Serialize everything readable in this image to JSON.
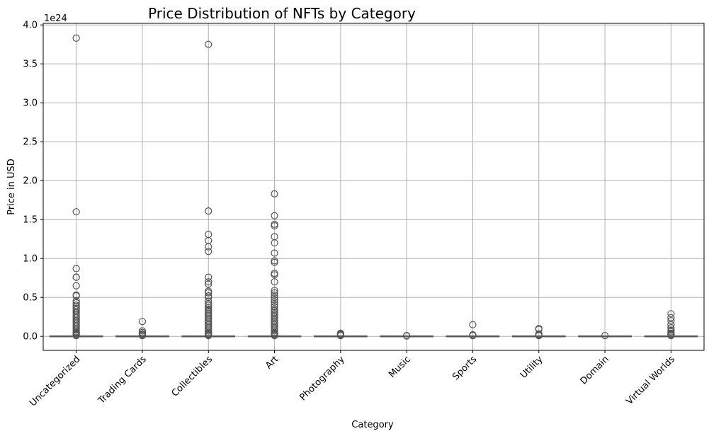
{
  "chart_data": {
    "type": "box",
    "title": "Price Distribution of NFTs by Category",
    "xlabel": "Category",
    "ylabel": "Price in USD",
    "y_offset_label": "1e24",
    "y_scale": 1e+24,
    "ylim": [
      -0.18,
      4.02
    ],
    "yticks": [
      0.0,
      0.5,
      1.0,
      1.5,
      2.0,
      2.5,
      3.0,
      3.5,
      4.0
    ],
    "ytick_labels": [
      "0.0",
      "0.5",
      "1.0",
      "1.5",
      "2.0",
      "2.5",
      "3.0",
      "3.5",
      "4.0"
    ],
    "grid": true,
    "colors": {
      "box": "#d9d9d9",
      "median": "#555555",
      "outlier_edge": "#555555",
      "grid": "#b0b0b0"
    },
    "categories": [
      "Uncategorized",
      "Trading Cards",
      "Collectibles",
      "Art",
      "Photography",
      "Music",
      "Sports",
      "Utility",
      "Domain",
      "Virtual Worlds"
    ],
    "boxes": [
      {
        "category": "Uncategorized",
        "q1": 0.0,
        "median": 0.0,
        "q3": 0.0,
        "whisker_low": 0.0,
        "whisker_high": 0.0,
        "outliers": [
          3.83,
          1.6,
          0.87,
          0.76,
          0.76,
          0.65,
          0.53,
          0.52,
          0.46,
          0.43,
          0.4,
          0.38,
          0.36,
          0.34,
          0.32,
          0.3,
          0.28,
          0.26,
          0.24,
          0.22,
          0.2,
          0.18,
          0.16,
          0.14,
          0.12,
          0.1,
          0.08,
          0.06,
          0.05,
          0.04,
          0.03,
          0.02,
          0.01
        ]
      },
      {
        "category": "Trading Cards",
        "q1": 0.0,
        "median": 0.0,
        "q3": 0.0,
        "whisker_low": 0.0,
        "whisker_high": 0.0,
        "outliers": [
          0.19,
          0.07,
          0.05,
          0.03,
          0.02,
          0.01
        ]
      },
      {
        "category": "Collectibles",
        "q1": 0.0,
        "median": 0.0,
        "q3": 0.0,
        "whisker_low": 0.0,
        "whisker_high": 0.0,
        "outliers": [
          3.75,
          1.61,
          1.31,
          1.23,
          1.15,
          1.09,
          0.76,
          0.7,
          0.67,
          0.58,
          0.56,
          0.52,
          0.5,
          0.45,
          0.42,
          0.4,
          0.37,
          0.35,
          0.33,
          0.31,
          0.29,
          0.27,
          0.25,
          0.23,
          0.21,
          0.19,
          0.17,
          0.15,
          0.13,
          0.11,
          0.09,
          0.07,
          0.05,
          0.04,
          0.03,
          0.02,
          0.01
        ]
      },
      {
        "category": "Art",
        "q1": 0.0,
        "median": 0.0,
        "q3": 0.0,
        "whisker_low": 0.0,
        "whisker_high": 0.0,
        "outliers": [
          1.83,
          1.55,
          1.44,
          1.42,
          1.28,
          1.2,
          1.07,
          0.97,
          0.95,
          0.81,
          0.79,
          0.7,
          0.59,
          0.56,
          0.53,
          0.5,
          0.47,
          0.44,
          0.41,
          0.38,
          0.35,
          0.33,
          0.31,
          0.29,
          0.27,
          0.25,
          0.23,
          0.21,
          0.19,
          0.17,
          0.15,
          0.13,
          0.11,
          0.09,
          0.07,
          0.05,
          0.04,
          0.03,
          0.02,
          0.01
        ]
      },
      {
        "category": "Photography",
        "q1": 0.0,
        "median": 0.0,
        "q3": 0.0,
        "whisker_low": 0.0,
        "whisker_high": 0.0,
        "outliers": [
          0.04,
          0.03,
          0.02,
          0.01
        ]
      },
      {
        "category": "Music",
        "q1": 0.0,
        "median": 0.0,
        "q3": 0.0,
        "whisker_low": 0.0,
        "whisker_high": 0.0,
        "outliers": [
          0.01,
          0.005
        ]
      },
      {
        "category": "Sports",
        "q1": 0.0,
        "median": 0.0,
        "q3": 0.0,
        "whisker_low": 0.0,
        "whisker_high": 0.0,
        "outliers": [
          0.15,
          0.02,
          0.01
        ]
      },
      {
        "category": "Utility",
        "q1": 0.0,
        "median": 0.0,
        "q3": 0.0,
        "whisker_low": 0.0,
        "whisker_high": 0.0,
        "outliers": [
          0.1,
          0.09,
          0.03,
          0.02,
          0.01
        ]
      },
      {
        "category": "Domain",
        "q1": 0.0,
        "median": 0.0,
        "q3": 0.0,
        "whisker_low": 0.0,
        "whisker_high": 0.0,
        "outliers": [
          0.01
        ]
      },
      {
        "category": "Virtual Worlds",
        "q1": 0.0,
        "median": 0.0,
        "q3": 0.0,
        "whisker_low": 0.0,
        "whisker_high": 0.0,
        "outliers": [
          0.29,
          0.24,
          0.2,
          0.15,
          0.11,
          0.08,
          0.06,
          0.04,
          0.03,
          0.02,
          0.01
        ]
      }
    ]
  }
}
